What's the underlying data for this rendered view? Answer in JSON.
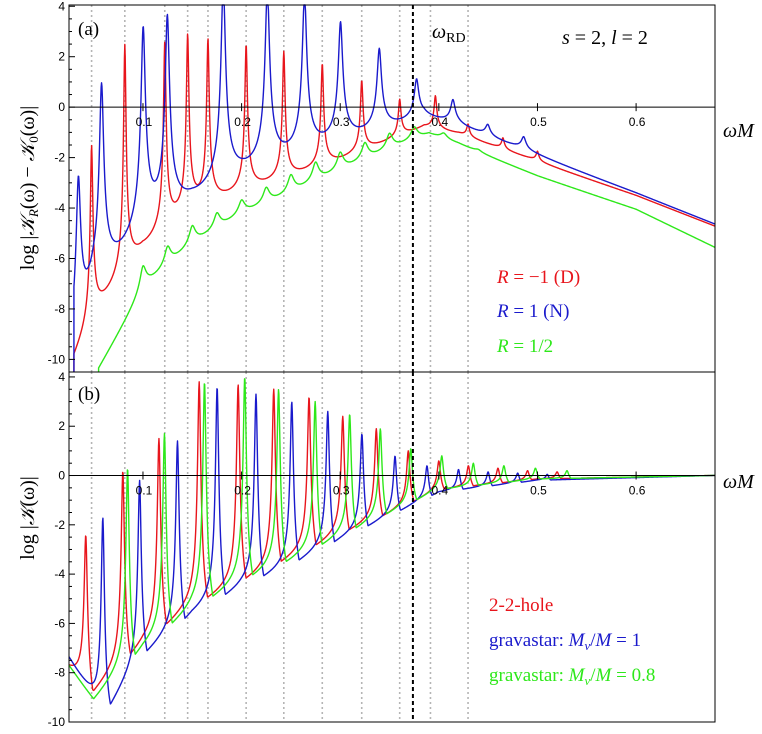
{
  "chart_data": [
    {
      "panel_label": "(a)",
      "type": "line",
      "annotation": "s = 2, l = 2",
      "annotation_parts": {
        "s": "s",
        "s_val": " = 2, ",
        "l": "l",
        "l_val": " = 2"
      },
      "ylabel": "log |𝒦_R(ω) − 𝒦_0(ω)|",
      "ylabel_parts": {
        "pre": "log |",
        "k1": "𝒦",
        "sub1": "R",
        "mid": "(ω) − ",
        "k2": "𝒦",
        "sub2": "0",
        "post": "(ω)|"
      },
      "xlabel": "ωM",
      "xlim": [
        0.025,
        0.68
      ],
      "ylim": [
        -10.5,
        4.2
      ],
      "x_ticks": [
        0.1,
        0.2,
        0.3,
        0.4,
        0.5,
        0.6
      ],
      "x_tick_labels": [
        "0.1",
        "0.2",
        "0.3",
        "0.4",
        "0.5",
        "0.6"
      ],
      "y_ticks": [
        4,
        2,
        0,
        -2,
        -4,
        -6,
        -8,
        -10
      ],
      "y_tick_labels": [
        "4",
        "2",
        "0",
        "-2",
        "-4",
        "-6",
        "-8",
        "-10"
      ],
      "ringdown_frequency": 0.3737,
      "ringdown_label": "ω_RD",
      "ringdown_label_parts": {
        "w": "ω",
        "sub": "RD"
      },
      "dotted_lines_x": [
        0.0479,
        0.0816,
        0.1221,
        0.1453,
        0.1659,
        0.2046,
        0.2428,
        0.2818,
        0.3218,
        0.3603,
        0.3915,
        0.4296
      ],
      "series": [
        {
          "name": "R = −1 (D)",
          "name_parts": {
            "var": "R",
            "rest": " = −1 (D)"
          },
          "color": "#e8151c",
          "baseline": {
            "x": [
              0.03,
              0.05,
              0.1,
              0.15,
              0.2,
              0.25,
              0.3,
              0.35,
              0.385,
              0.42,
              0.5,
              0.6,
              0.68
            ],
            "y": [
              -10.5,
              -9.0,
              -6.5,
              -5.0,
              -4.1,
              -3.4,
              -2.6,
              -1.7,
              -1.1,
              -1.3,
              -2.3,
              -3.6,
              -4.8
            ]
          },
          "peaks": [
            [
              0.0479,
              -2.0
            ],
            [
              0.0816,
              1.9
            ],
            [
              0.1221,
              1.8
            ],
            [
              0.1453,
              2.0
            ],
            [
              0.1659,
              1.9
            ],
            [
              0.2046,
              1.9
            ],
            [
              0.2428,
              1.7
            ],
            [
              0.2818,
              1.3
            ],
            [
              0.3218,
              0.7
            ],
            [
              0.3603,
              0.0
            ],
            [
              0.3965,
              0.2
            ],
            [
              0.4296,
              -0.9
            ],
            [
              0.465,
              -1.4
            ],
            [
              0.5,
              -1.9
            ]
          ]
        },
        {
          "name": "R = 1 (N)",
          "name_parts": {
            "var": "R",
            "rest": " = 1 (N)"
          },
          "color": "#1a1acc",
          "baseline": {
            "x": [
              0.03,
              0.05,
              0.1,
              0.15,
              0.2,
              0.25,
              0.3,
              0.35,
              0.385,
              0.42,
              0.5,
              0.6,
              0.68
            ],
            "y": [
              -10.5,
              -8.5,
              -6.3,
              -4.9,
              -3.9,
              -3.2,
              -2.4,
              -1.6,
              -1.0,
              -1.2,
              -2.2,
              -3.6,
              -4.8
            ]
          },
          "peaks": [
            [
              0.0345,
              -3.8
            ],
            [
              0.058,
              -0.2
            ],
            [
              0.1002,
              1.9
            ],
            [
              0.1247,
              2.4
            ],
            [
              0.1814,
              4.0
            ],
            [
              0.2261,
              3.7
            ],
            [
              0.2638,
              3.5
            ],
            [
              0.3003,
              2.5
            ],
            [
              0.3396,
              1.6
            ],
            [
              0.3774,
              0.5
            ],
            [
              0.4143,
              -0.2
            ],
            [
              0.4496,
              -1.1
            ],
            [
              0.486,
              -1.5
            ]
          ]
        },
        {
          "name": "R = 1/2",
          "name_parts": {
            "var": "R",
            "rest": " = 1/2"
          },
          "color": "#2ee81a",
          "baseline": {
            "x": [
              0.055,
              0.1,
              0.15,
              0.2,
              0.25,
              0.3,
              0.35,
              0.39,
              0.42,
              0.5,
              0.6,
              0.68
            ],
            "y": [
              -10.5,
              -7.5,
              -5.8,
              -4.6,
              -3.8,
              -2.9,
              -2.0,
              -1.3,
              -1.6,
              -2.8,
              -4.1,
              -5.6
            ]
          },
          "peaks": [
            [
              0.1,
              -6.5
            ],
            [
              0.125,
              -5.8
            ],
            [
              0.15,
              -5.0
            ],
            [
              0.175,
              -4.5
            ],
            [
              0.2,
              -4.0
            ],
            [
              0.225,
              -3.5
            ],
            [
              0.25,
              -3.0
            ],
            [
              0.275,
              -2.5
            ],
            [
              0.3,
              -2.1
            ],
            [
              0.325,
              -1.7
            ],
            [
              0.35,
              -1.3
            ],
            [
              0.375,
              -1.0
            ],
            [
              0.405,
              -1.2
            ],
            [
              0.44,
              -1.8
            ]
          ]
        }
      ]
    },
    {
      "panel_label": "(b)",
      "type": "line",
      "ylabel": "log |𝒦(ω)|",
      "ylabel_parts": {
        "pre": "log |",
        "k": "𝒦",
        "post": "(ω)|"
      },
      "xlabel": "ωM",
      "xlim": [
        0.025,
        0.68
      ],
      "ylim": [
        -10,
        4.2
      ],
      "x_ticks": [
        0.1,
        0.2,
        0.3,
        0.4,
        0.5,
        0.6
      ],
      "x_tick_labels": [
        "0.1",
        "0.2",
        "0.3",
        "0.4",
        "0.5",
        "0.6"
      ],
      "y_ticks": [
        4,
        2,
        0,
        -2,
        -4,
        -6,
        -8,
        -10
      ],
      "y_tick_labels": [
        "4",
        "2",
        "0",
        "-2",
        "-4",
        "-6",
        "-8",
        "-10"
      ],
      "ringdown_frequency": 0.3737,
      "dotted_lines_x": [
        0.0479,
        0.0816,
        0.1221,
        0.1453,
        0.1659,
        0.2046,
        0.2428,
        0.2818,
        0.3218,
        0.3603,
        0.3915,
        0.4296
      ],
      "series": [
        {
          "name": "2-2-hole",
          "color": "#e8151c",
          "envelope": {
            "x": [
              0.025,
              0.05,
              0.1,
              0.15,
              0.2,
              0.25,
              0.3,
              0.35,
              0.4,
              0.5,
              0.68
            ],
            "y": [
              -8.0,
              -9.0,
              -7.0,
              -5.5,
              -4.5,
              -3.5,
              -2.5,
              -1.6,
              -0.6,
              -0.15,
              0.0
            ]
          },
          "peaks": [
            [
              0.042,
              -2.4
            ],
            [
              0.0796,
              0.2
            ],
            [
              0.1162,
              1.5
            ],
            [
              0.157,
              3.8
            ],
            [
              0.1965,
              3.7
            ],
            [
              0.2326,
              3.5
            ],
            [
              0.2684,
              3.2
            ],
            [
              0.3026,
              2.4
            ],
            [
              0.3366,
              1.9
            ],
            [
              0.369,
              1.0
            ],
            [
              0.4,
              0.6
            ],
            [
              0.43,
              0.4
            ],
            [
              0.46,
              0.3
            ],
            [
              0.49,
              0.2
            ],
            [
              0.52,
              0.15
            ]
          ]
        },
        {
          "name": "gravastar: M_v/M = 1",
          "name_parts": {
            "pre": "gravastar: ",
            "m1": "M",
            "v": "v",
            "mid": "/",
            "m2": "M",
            "post": " = 1"
          },
          "color": "#1a1acc",
          "envelope": {
            "x": [
              0.025,
              0.06,
              0.1,
              0.15,
              0.2,
              0.25,
              0.3,
              0.35,
              0.4,
              0.5,
              0.68
            ],
            "y": [
              -7.5,
              -10.0,
              -7.5,
              -5.8,
              -4.7,
              -3.8,
              -2.7,
              -1.7,
              -0.7,
              -0.2,
              0.0
            ]
          },
          "peaks": [
            [
              0.0593,
              -1.7
            ],
            [
              0.0966,
              -0.2
            ],
            [
              0.135,
              1.4
            ],
            [
              0.1752,
              3.6
            ],
            [
              0.2146,
              3.3
            ],
            [
              0.2509,
              3.0
            ],
            [
              0.2874,
              2.6
            ],
            [
              0.322,
              1.7
            ],
            [
              0.3556,
              0.8
            ],
            [
              0.388,
              0.4
            ],
            [
              0.42,
              0.25
            ],
            [
              0.45,
              0.15
            ],
            [
              0.48,
              0.1
            ],
            [
              0.51,
              0.05
            ]
          ]
        },
        {
          "name": "gravastar: M_v/M = 0.8",
          "name_parts": {
            "pre": "gravastar: ",
            "m1": "M",
            "v": "v",
            "mid": "/",
            "m2": "M",
            "post": " = 0.8"
          },
          "color": "#2ee81a",
          "envelope": {
            "x": [
              0.025,
              0.05,
              0.1,
              0.15,
              0.2,
              0.25,
              0.3,
              0.35,
              0.4,
              0.5,
              0.68
            ],
            "y": [
              -7.8,
              -9.3,
              -7.2,
              -5.6,
              -4.5,
              -3.6,
              -2.6,
              -1.6,
              -0.6,
              -0.15,
              0.0
            ]
          },
          "peaks": [
            [
              0.0844,
              0.3
            ],
            [
              0.1218,
              1.7
            ],
            [
              0.1624,
              3.8
            ],
            [
              0.2032,
              4.0
            ],
            [
              0.2375,
              3.5
            ],
            [
              0.2746,
              3.0
            ],
            [
              0.3096,
              2.5
            ],
            [
              0.3407,
              1.9
            ],
            [
              0.3716,
              1.1
            ],
            [
              0.403,
              0.8
            ],
            [
              0.435,
              0.5
            ],
            [
              0.466,
              0.4
            ],
            [
              0.498,
              0.3
            ],
            [
              0.53,
              0.2
            ]
          ]
        }
      ]
    }
  ]
}
